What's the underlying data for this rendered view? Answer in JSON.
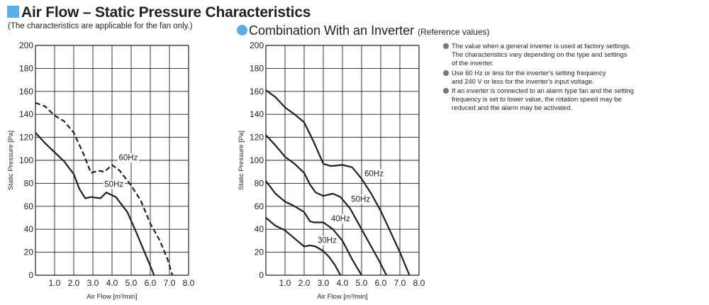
{
  "header": {
    "title": "Air Flow – Static Pressure Characteristics",
    "subtitle": "(The characteristics are applicable for the fan only.)",
    "inverter_heading": "Combination With an Inverter",
    "inverter_note": "(Reference values)"
  },
  "notes": [
    {
      "lines": [
        "The value when a general inverter is used at factory settings.",
        "The characteristics vary depending on the type and settings",
        "of the inverter."
      ]
    },
    {
      "lines": [
        "Use 60 Hz or less for the inverter's setting frequency",
        "and 240 V or less for the inverter's input voltage."
      ]
    },
    {
      "lines": [
        "If an inverter is connected to an alarm type fan and the setting",
        "frequency is set to lower value, the rotation speed may be",
        "reduced and the alarm may be activated."
      ]
    }
  ],
  "colors": {
    "accent": "#5aaee3",
    "grid": "#231f20",
    "curve": "#231f20"
  },
  "chart_data": [
    {
      "type": "line",
      "xlabel": "Air Flow [m³/min]",
      "ylabel": "Static Pressure [Pa]",
      "xlim": [
        0,
        8
      ],
      "ylim": [
        0,
        200
      ],
      "x_ticks": [
        "1.0",
        "2.0",
        "3.0",
        "4.0",
        "5.0",
        "6.0",
        "7.0",
        "8.0"
      ],
      "y_ticks": [
        "0",
        "20",
        "40",
        "60",
        "80",
        "100",
        "120",
        "140",
        "160",
        "180",
        "200"
      ],
      "grid": true,
      "series": [
        {
          "name": "60Hz",
          "style": "dashed",
          "label_at": [
            4.85,
            100
          ],
          "points": [
            [
              0,
              150
            ],
            [
              0.5,
              147
            ],
            [
              1.0,
              139
            ],
            [
              1.5,
              134
            ],
            [
              2.0,
              124
            ],
            [
              2.5,
              106
            ],
            [
              2.9,
              89
            ],
            [
              3.3,
              91
            ],
            [
              3.6,
              90
            ],
            [
              4.0,
              96
            ],
            [
              4.4,
              91
            ],
            [
              5.0,
              78
            ],
            [
              5.5,
              65
            ],
            [
              6.0,
              45
            ],
            [
              6.5,
              30
            ],
            [
              6.9,
              14
            ],
            [
              7.15,
              0
            ]
          ]
        },
        {
          "name": "50Hz",
          "style": "solid",
          "label_at": [
            4.1,
            77
          ],
          "points": [
            [
              0,
              124
            ],
            [
              0.5,
              115
            ],
            [
              1.0,
              107
            ],
            [
              1.5,
              99
            ],
            [
              2.0,
              88
            ],
            [
              2.3,
              75
            ],
            [
              2.6,
              67
            ],
            [
              2.9,
              68
            ],
            [
              3.4,
              67
            ],
            [
              3.7,
              72
            ],
            [
              4.2,
              68
            ],
            [
              4.8,
              55
            ],
            [
              5.3,
              36
            ],
            [
              5.8,
              16
            ],
            [
              6.2,
              0
            ]
          ]
        }
      ]
    },
    {
      "type": "line",
      "xlabel": "Air Flow [m³/min]",
      "ylabel": "Static Pressure [Pa]",
      "xlim": [
        0,
        8
      ],
      "ylim": [
        0,
        200
      ],
      "x_ticks": [
        "1.0",
        "2.0",
        "3.0",
        "4.0",
        "5.0",
        "6.0",
        "7.0",
        "8.0"
      ],
      "y_ticks": [
        "0",
        "20",
        "40",
        "60",
        "80",
        "100",
        "120",
        "140",
        "160",
        "180",
        "200"
      ],
      "grid": true,
      "series": [
        {
          "name": "60Hz",
          "style": "solid",
          "label_at": [
            5.65,
            86
          ],
          "points": [
            [
              0,
              161
            ],
            [
              0.5,
              155
            ],
            [
              1.0,
              146
            ],
            [
              1.5,
              140
            ],
            [
              2.0,
              133
            ],
            [
              2.5,
              116
            ],
            [
              3.0,
              97
            ],
            [
              3.4,
              95
            ],
            [
              4.0,
              96
            ],
            [
              4.5,
              94
            ],
            [
              5.0,
              84
            ],
            [
              5.5,
              71
            ],
            [
              6.0,
              56
            ],
            [
              6.5,
              38
            ],
            [
              7.0,
              20
            ],
            [
              7.5,
              0
            ]
          ]
        },
        {
          "name": "50Hz",
          "style": "solid",
          "label_at": [
            4.95,
            64
          ],
          "points": [
            [
              0,
              122
            ],
            [
              0.5,
              113
            ],
            [
              1.0,
              103
            ],
            [
              1.5,
              97
            ],
            [
              2.0,
              89
            ],
            [
              2.3,
              79
            ],
            [
              2.6,
              72
            ],
            [
              3.0,
              69
            ],
            [
              3.5,
              71
            ],
            [
              3.9,
              68
            ],
            [
              4.4,
              58
            ],
            [
              4.9,
              43
            ],
            [
              5.4,
              28
            ],
            [
              5.9,
              13
            ],
            [
              6.3,
              0
            ]
          ]
        },
        {
          "name": "40Hz",
          "style": "solid",
          "label_at": [
            3.9,
            47
          ],
          "points": [
            [
              0,
              82
            ],
            [
              0.5,
              71
            ],
            [
              1.0,
              64
            ],
            [
              1.5,
              60
            ],
            [
              2.0,
              55
            ],
            [
              2.3,
              47
            ],
            [
              2.5,
              46
            ],
            [
              3.0,
              46
            ],
            [
              3.5,
              40
            ],
            [
              4.0,
              30
            ],
            [
              4.5,
              14
            ],
            [
              5.0,
              0
            ]
          ]
        },
        {
          "name": "30Hz",
          "style": "solid",
          "label_at": [
            3.2,
            28
          ],
          "points": [
            [
              0,
              50
            ],
            [
              0.5,
              43
            ],
            [
              1.0,
              39
            ],
            [
              1.5,
              32
            ],
            [
              2.0,
              25
            ],
            [
              2.3,
              26
            ],
            [
              2.6,
              25
            ],
            [
              3.0,
              21
            ],
            [
              3.3,
              16
            ],
            [
              3.6,
              9
            ],
            [
              3.9,
              0
            ]
          ]
        }
      ]
    }
  ]
}
